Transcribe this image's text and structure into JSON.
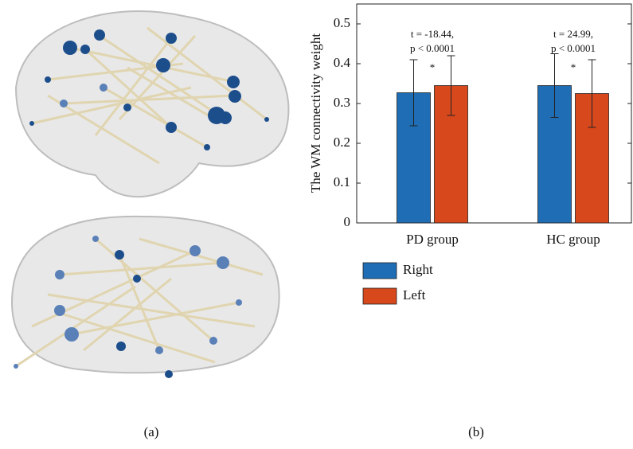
{
  "captions": {
    "a": "(a)",
    "b": "(b)"
  },
  "chart_data": {
    "type": "bar",
    "ylabel": "The WM connectivity weight",
    "categories": [
      "PD group",
      "HC group"
    ],
    "series": [
      {
        "name": "Right",
        "color": "#1f6db5",
        "values": [
          0.327,
          0.345
        ],
        "errors": [
          0.083,
          0.08
        ]
      },
      {
        "name": "Left",
        "color": "#d7481c",
        "values": [
          0.345,
          0.325
        ],
        "errors": [
          0.075,
          0.085
        ]
      }
    ],
    "annotations": [
      [
        "t = -18.44,",
        "p < 0.0001",
        "*"
      ],
      [
        "t = 24.99,",
        "p < 0.0001",
        "*"
      ]
    ],
    "ylim": [
      0,
      0.55
    ],
    "yticks": [
      0,
      0.1,
      0.2,
      0.3,
      0.4,
      0.5
    ]
  }
}
